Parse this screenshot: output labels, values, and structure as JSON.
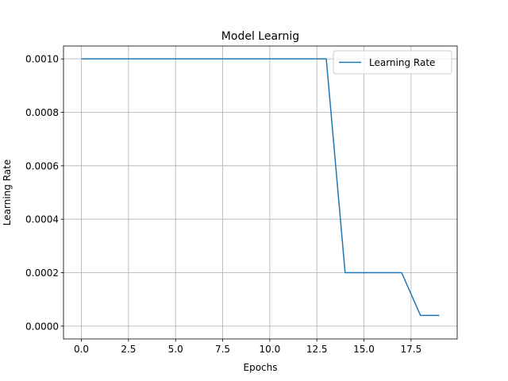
{
  "colors": {
    "background": "#ffffff",
    "grid": "#b0b0b0",
    "axis": "#000000",
    "series": "#1f77b4",
    "legend_border": "#cccccc"
  },
  "chart_data": {
    "type": "line",
    "title": "Model Learnig",
    "xlabel": "Epochs",
    "ylabel": "Learning Rate",
    "xlim": [
      -0.95,
      19.95
    ],
    "ylim": [
      -4.8e-05,
      0.001048
    ],
    "grid": true,
    "legend_placement": "upper right",
    "x_ticks": [
      0.0,
      2.5,
      5.0,
      7.5,
      10.0,
      12.5,
      15.0,
      17.5
    ],
    "x_tick_labels": [
      "0.0",
      "2.5",
      "5.0",
      "7.5",
      "10.0",
      "12.5",
      "15.0",
      "17.5"
    ],
    "y_ticks": [
      0.0,
      0.0002,
      0.0004,
      0.0006,
      0.0008,
      0.001
    ],
    "y_tick_labels": [
      "0.0000",
      "0.0002",
      "0.0004",
      "0.0006",
      "0.0008",
      "0.0010"
    ],
    "x": [
      0,
      1,
      2,
      3,
      4,
      5,
      6,
      7,
      8,
      9,
      10,
      11,
      12,
      13,
      14,
      15,
      16,
      17,
      18,
      19
    ],
    "series": [
      {
        "name": "Learning Rate",
        "values": [
          0.001,
          0.001,
          0.001,
          0.001,
          0.001,
          0.001,
          0.001,
          0.001,
          0.001,
          0.001,
          0.001,
          0.001,
          0.001,
          0.001,
          0.0002,
          0.0002,
          0.0002,
          0.0002,
          4e-05,
          4e-05
        ]
      }
    ]
  }
}
